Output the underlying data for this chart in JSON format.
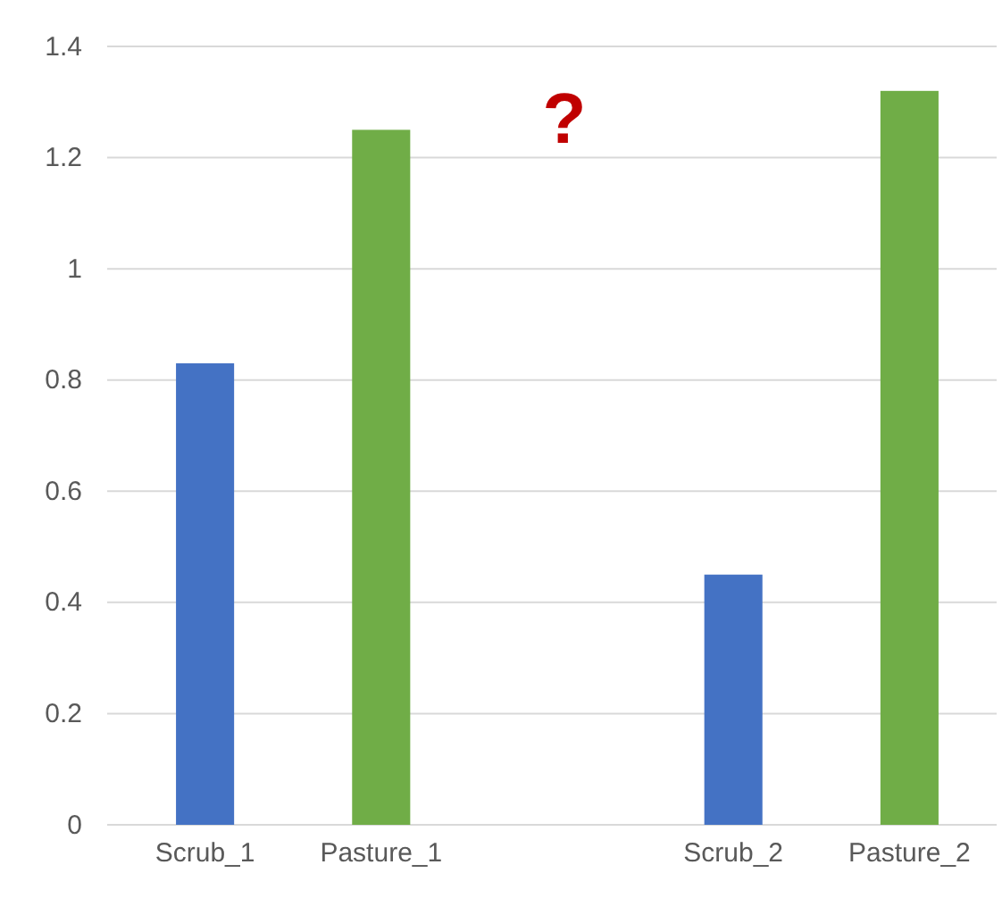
{
  "chart_data": {
    "type": "bar",
    "categories": [
      "Scrub_1",
      "Pasture_1",
      null,
      "Scrub_2",
      "Pasture_2"
    ],
    "values": [
      0.83,
      1.25,
      null,
      0.45,
      1.32
    ],
    "colors": [
      "#4472c4",
      "#70ad47",
      null,
      "#4472c4",
      "#70ad47"
    ],
    "ylim": [
      0,
      1.4
    ],
    "yticks": [
      0,
      0.2,
      0.4,
      0.6,
      0.8,
      1,
      1.2,
      1.4
    ],
    "grid": "y",
    "annotations": [
      "?"
    ]
  }
}
